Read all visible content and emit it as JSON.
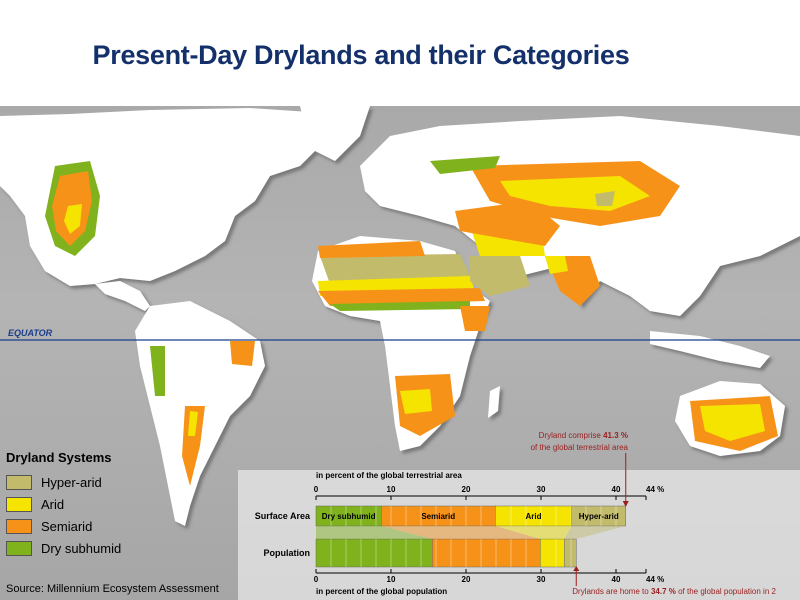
{
  "title": "Present-Day Drylands and their Categories",
  "equator_label": "EQUATOR",
  "legend": {
    "title": "Dryland Systems",
    "items": [
      {
        "label": "Hyper-arid",
        "color": "#c2bb6c"
      },
      {
        "label": "Arid",
        "color": "#f5e400"
      },
      {
        "label": "Semiarid",
        "color": "#f79219"
      },
      {
        "label": "Dry subhumid",
        "color": "#7fb21c"
      }
    ]
  },
  "source": "Source: Millennium Ecosystem Assessment",
  "colors": {
    "ocean": "#a9a9a9",
    "land": "#ffffff",
    "title": "#14306b",
    "equator": "#1a3e8c",
    "annotation": "#9a1e1e"
  },
  "chart_data": {
    "type": "bar",
    "top_axis_label": "in percent of the global terrestrial area",
    "bottom_axis_label": "in percent of the global population",
    "ticks": [
      "0",
      "10",
      "20",
      "30",
      "40",
      "44 %"
    ],
    "xlim": [
      0,
      44
    ],
    "rows": [
      {
        "label": "Surface Area",
        "segments": [
          {
            "category": "Dry subhumid",
            "start": 0,
            "end": 8.7
          },
          {
            "category": "Semiarid",
            "start": 8.7,
            "end": 23.9
          },
          {
            "category": "Arid",
            "start": 23.9,
            "end": 34.1
          },
          {
            "category": "Hyper-arid",
            "start": 34.1,
            "end": 41.3
          }
        ],
        "segment_labels": [
          "Dry subhumid",
          "Semiarid",
          "Arid",
          "Hyper-arid"
        ]
      },
      {
        "label": "Population",
        "segments": [
          {
            "category": "Dry subhumid",
            "start": 0,
            "end": 15.5
          },
          {
            "category": "Semiarid",
            "start": 15.5,
            "end": 29.9
          },
          {
            "category": "Arid",
            "start": 29.9,
            "end": 33.1
          },
          {
            "category": "Hyper-arid",
            "start": 33.1,
            "end": 34.7
          }
        ]
      }
    ],
    "annotations": {
      "area_line1_pre": "Dryland comprise ",
      "area_value": "41.3 %",
      "area_line2": "of the global terrestrial area",
      "pop_pre": "Drylands are home to ",
      "pop_value": "34.7 %",
      "pop_post": " of the global population in 2"
    }
  }
}
